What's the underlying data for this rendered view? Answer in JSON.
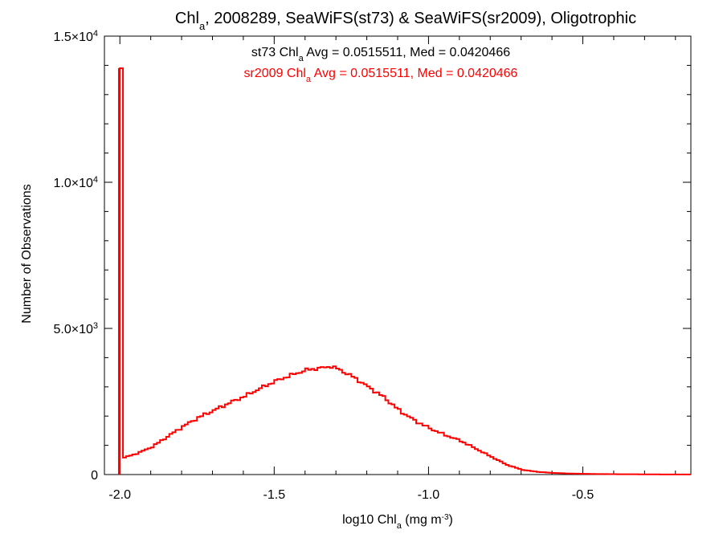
{
  "chart_data": {
    "type": "line",
    "title_parts": [
      "Chl",
      "a",
      ", 2008289, SeaWiFS(st73) & SeaWiFS(sr2009), Oligotrophic"
    ],
    "xlabel_parts": [
      "log10 Chl",
      "a",
      " (mg m",
      "-3",
      ")"
    ],
    "ylabel": "Number of Observations",
    "xlim": [
      -2.05,
      -0.15
    ],
    "ylim": [
      0,
      15000
    ],
    "x_ticks": [
      -2.0,
      -1.5,
      -1.0,
      -0.5
    ],
    "x_tick_labels": [
      "-2.0",
      "-1.5",
      "-1.0",
      "-0.5"
    ],
    "y_ticks": [
      0,
      5000,
      10000,
      15000
    ],
    "y_tick_labels": [
      {
        "mant": "0",
        "exp": ""
      },
      {
        "mant": "5.0×10",
        "exp": "3"
      },
      {
        "mant": "1.0×10",
        "exp": "4"
      },
      {
        "mant": "1.5×10",
        "exp": "4"
      }
    ],
    "annotations": [
      {
        "parts": [
          "st73 Chl",
          "a",
          " Avg = 0.0515511, Med = 0.0420466"
        ],
        "color": "#000000"
      },
      {
        "parts": [
          "sr2009 Chl",
          "a",
          " Avg = 0.0515511, Med = 0.0420466"
        ],
        "color": "#ff0000"
      }
    ],
    "series": [
      {
        "color": "#ff0000",
        "spike": {
          "x": [
            -2.0,
            -1.99
          ],
          "value": 13900
        },
        "points": [
          [
            -1.99,
            580
          ],
          [
            -1.95,
            720
          ],
          [
            -1.9,
            950
          ],
          [
            -1.85,
            1300
          ],
          [
            -1.8,
            1650
          ],
          [
            -1.75,
            1950
          ],
          [
            -1.7,
            2200
          ],
          [
            -1.65,
            2450
          ],
          [
            -1.6,
            2680
          ],
          [
            -1.55,
            2950
          ],
          [
            -1.5,
            3200
          ],
          [
            -1.45,
            3400
          ],
          [
            -1.4,
            3580
          ],
          [
            -1.35,
            3650
          ],
          [
            -1.32,
            3700
          ],
          [
            -1.3,
            3620
          ],
          [
            -1.25,
            3350
          ],
          [
            -1.2,
            3000
          ],
          [
            -1.15,
            2650
          ],
          [
            -1.1,
            2200
          ],
          [
            -1.05,
            1850
          ],
          [
            -1.0,
            1580
          ],
          [
            -0.95,
            1350
          ],
          [
            -0.9,
            1150
          ],
          [
            -0.85,
            880
          ],
          [
            -0.8,
            600
          ],
          [
            -0.75,
            330
          ],
          [
            -0.7,
            160
          ],
          [
            -0.65,
            90
          ],
          [
            -0.6,
            55
          ],
          [
            -0.55,
            35
          ],
          [
            -0.5,
            25
          ],
          [
            -0.45,
            18
          ],
          [
            -0.4,
            12
          ],
          [
            -0.3,
            7
          ],
          [
            -0.2,
            3
          ],
          [
            -0.15,
            2
          ]
        ]
      }
    ]
  }
}
